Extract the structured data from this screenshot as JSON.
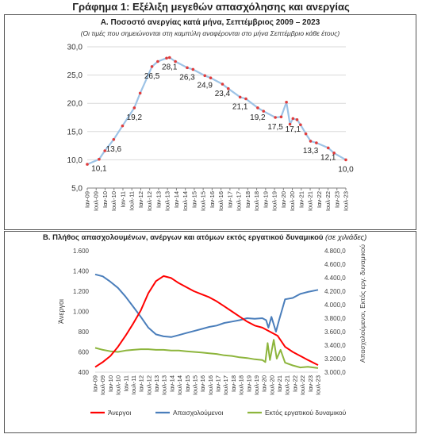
{
  "page_title": "Γράφημα 1: Εξέλιξη μεγεθών απασχόλησης και ανεργίας",
  "colors": {
    "lineA": "#9dc3e6",
    "markerA": "#e03c3c",
    "unemployed": "#ff0000",
    "employed": "#4a7ebb",
    "inactive": "#8db53c",
    "grid": "#d9d9d9",
    "axis": "#7f7f7f"
  },
  "chart_data": [
    {
      "type": "line",
      "title": "Α. Ποσοστό ανεργίας κατά μήνα, Σεπτέμβριος 2009 – 2023",
      "subtitle": "(Οι τιμές που σημειώνονται στη καμπύλη αναφέρονται στο μήνα Σεπτέμβριο κάθε έτους)",
      "ylim": [
        5,
        30
      ],
      "yticks": [
        "5,0",
        "10,0",
        "15,0",
        "20,0",
        "25,0",
        "30,0"
      ],
      "xticks": [
        "Ιαν-09",
        "Ιουλ-09",
        "Ιαν-10",
        "Ιουλ-10",
        "Ιαν-11",
        "Ιουλ-11",
        "Ιαν-12",
        "Ιουλ-12",
        "Ιαν-13",
        "Ιουλ-13",
        "Ιαν-14",
        "Ιουλ-14",
        "Ιαν-15",
        "Ιουλ-15",
        "Ιαν-16",
        "Ιουλ-16",
        "Ιαν-17",
        "Ιουλ-17",
        "Ιαν-18",
        "Ιουλ-18",
        "Ιαν-19",
        "Ιουλ-19",
        "Ιαν-20",
        "Ιουλ-20",
        "Ιαν-21",
        "Ιουλ-21",
        "Ιαν-22",
        "Ιουλ-22",
        "Ιαν-23",
        "Ιουλ-23"
      ],
      "x": [
        2009.0,
        2009.67,
        2010.0,
        2010.5,
        2011.0,
        2011.67,
        2012.0,
        2012.67,
        2013.0,
        2013.5,
        2013.67,
        2014.0,
        2014.67,
        2015.0,
        2015.67,
        2016.0,
        2016.67,
        2017.0,
        2017.67,
        2018.0,
        2018.67,
        2019.0,
        2019.67,
        2020.0,
        2020.3,
        2020.5,
        2020.67,
        2020.9,
        2021.1,
        2021.4,
        2021.67,
        2022.0,
        2022.67,
        2023.0,
        2023.67
      ],
      "y": [
        9.2,
        10.1,
        11.6,
        13.6,
        16.0,
        19.2,
        21.8,
        26.5,
        27.4,
        28.0,
        28.1,
        27.4,
        26.3,
        26.0,
        24.9,
        24.5,
        23.4,
        22.6,
        21.1,
        20.8,
        19.2,
        18.6,
        17.5,
        17.6,
        20.2,
        16.3,
        17.3,
        17.1,
        16.2,
        14.6,
        13.3,
        13.0,
        12.1,
        11.2,
        10.0
      ],
      "labels": [
        {
          "x": 2009.67,
          "y": 10.1,
          "text": "10,1"
        },
        {
          "x": 2010.5,
          "y": 13.6,
          "text": "13,6"
        },
        {
          "x": 2011.67,
          "y": 19.2,
          "text": "19,2"
        },
        {
          "x": 2012.67,
          "y": 26.5,
          "text": "26,5"
        },
        {
          "x": 2013.67,
          "y": 28.1,
          "text": "28,1"
        },
        {
          "x": 2014.67,
          "y": 26.3,
          "text": "26,3"
        },
        {
          "x": 2015.67,
          "y": 24.9,
          "text": "24,9"
        },
        {
          "x": 2016.67,
          "y": 23.4,
          "text": "23,4"
        },
        {
          "x": 2017.67,
          "y": 21.1,
          "text": "21,1"
        },
        {
          "x": 2018.67,
          "y": 19.2,
          "text": "19,2"
        },
        {
          "x": 2019.67,
          "y": 17.5,
          "text": "17,5"
        },
        {
          "x": 2020.67,
          "y": 17.1,
          "text": "17,1"
        },
        {
          "x": 2021.67,
          "y": 13.3,
          "text": "13,3"
        },
        {
          "x": 2022.67,
          "y": 12.1,
          "text": "12,1"
        },
        {
          "x": 2023.67,
          "y": 10.0,
          "text": "10,0"
        }
      ]
    },
    {
      "type": "line",
      "title": "Β. Πλήθος απασχολουμένων, ανέργων και ατόμων εκτός εργατικού δυναμικού",
      "title_note": "(σε χιλιάδες)",
      "ylabel": "Άνεργοι",
      "y2label": "Απασχολούμενοι, Εκτός εργ. δυναμικού",
      "ylim": [
        400,
        1600
      ],
      "y2lim": [
        3000,
        4800
      ],
      "yticks": [
        "400",
        "600",
        "800",
        "1.000",
        "1.200",
        "1.400",
        "1.600"
      ],
      "y2ticks": [
        "3.000,0",
        "3.200,0",
        "3.400,0",
        "3.600,0",
        "3.800,0",
        "4.000,0",
        "4.200,0",
        "4.400,0",
        "4.600,0",
        "4.800,0"
      ],
      "xticks": [
        "Ιαν-09",
        "Ιουλ-09",
        "Ιαν-10",
        "Ιουλ-10",
        "Ιαν-11",
        "Ιουλ-11",
        "Ιαν-12",
        "Ιουλ-12",
        "Ιαν-13",
        "Ιουλ-13",
        "Ιαν-14",
        "Ιουλ-14",
        "Ιαν-15",
        "Ιουλ-15",
        "Ιαν-16",
        "Ιουλ-16",
        "Ιαν-17",
        "Ιουλ-17",
        "Ιαν-18",
        "Ιουλ-18",
        "Ιαν-19",
        "Ιουλ-19",
        "Ιαν-20",
        "Ιουλ-20",
        "Ιαν-21",
        "Ιουλ-21",
        "Ιαν-22",
        "Ιουλ-22",
        "Ιαν-23",
        "Ιουλ-23"
      ],
      "series": [
        {
          "name": "Άνεργοι",
          "axis": "left",
          "x": [
            2009.0,
            2009.5,
            2010.0,
            2010.5,
            2011.0,
            2011.5,
            2012.0,
            2012.5,
            2013.0,
            2013.5,
            2014.0,
            2014.5,
            2015.0,
            2015.5,
            2016.0,
            2016.5,
            2017.0,
            2017.5,
            2018.0,
            2018.5,
            2019.0,
            2019.5,
            2020.0,
            2020.5,
            2021.0,
            2021.5,
            2022.0,
            2022.5,
            2023.0,
            2023.67
          ],
          "y": [
            450,
            500,
            560,
            650,
            760,
            880,
            1010,
            1180,
            1300,
            1350,
            1330,
            1280,
            1240,
            1200,
            1170,
            1140,
            1100,
            1050,
            1000,
            950,
            900,
            860,
            840,
            800,
            760,
            650,
            600,
            560,
            520,
            470
          ]
        },
        {
          "name": "Απασχολούμενοι",
          "axis": "right",
          "x": [
            2009.0,
            2009.5,
            2010.0,
            2010.5,
            2011.0,
            2011.5,
            2012.0,
            2012.5,
            2013.0,
            2013.5,
            2014.0,
            2014.5,
            2015.0,
            2015.5,
            2016.0,
            2016.5,
            2017.0,
            2017.5,
            2018.0,
            2018.5,
            2019.0,
            2019.5,
            2020.0,
            2020.25,
            2020.4,
            2020.6,
            2020.9,
            2021.1,
            2021.5,
            2022.0,
            2022.5,
            2023.0,
            2023.67
          ],
          "y": [
            4450,
            4420,
            4340,
            4250,
            4120,
            3970,
            3820,
            3660,
            3560,
            3530,
            3520,
            3550,
            3580,
            3610,
            3640,
            3670,
            3690,
            3730,
            3750,
            3770,
            3800,
            3790,
            3800,
            3770,
            3660,
            3820,
            3600,
            3770,
            4080,
            4100,
            4160,
            4190,
            4220
          ]
        },
        {
          "name": "Εκτός εργατικού δυναμικού",
          "axis": "right",
          "x": [
            2009.0,
            2009.5,
            2010.0,
            2010.5,
            2011.0,
            2011.5,
            2012.0,
            2012.5,
            2013.0,
            2013.5,
            2014.0,
            2014.5,
            2015.0,
            2015.5,
            2016.0,
            2016.5,
            2017.0,
            2017.5,
            2018.0,
            2018.5,
            2019.0,
            2019.5,
            2020.0,
            2020.2,
            2020.35,
            2020.5,
            2020.75,
            2020.95,
            2021.2,
            2021.5,
            2022.0,
            2022.5,
            2023.0,
            2023.67
          ],
          "y": [
            3360,
            3330,
            3310,
            3300,
            3320,
            3330,
            3340,
            3340,
            3330,
            3330,
            3320,
            3320,
            3310,
            3300,
            3290,
            3280,
            3270,
            3250,
            3240,
            3220,
            3210,
            3190,
            3180,
            3150,
            3430,
            3180,
            3480,
            3200,
            3330,
            3140,
            3100,
            3070,
            3080,
            3060
          ]
        }
      ]
    }
  ]
}
